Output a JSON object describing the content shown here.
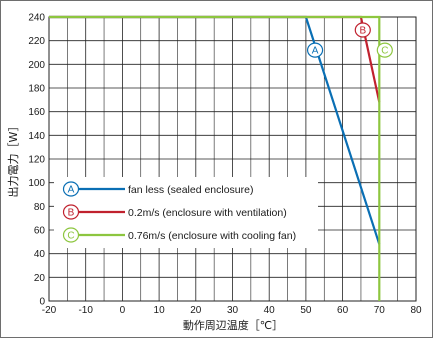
{
  "chart_data": {
    "type": "line",
    "xlabel": "動作周辺温度［℃］",
    "ylabel": "出力電力［W］",
    "xlim": [
      -20,
      80
    ],
    "ylim": [
      0,
      240
    ],
    "x_ticks": [
      -20,
      -10,
      0,
      10,
      20,
      30,
      40,
      50,
      60,
      70,
      80
    ],
    "y_ticks": [
      0,
      20,
      40,
      60,
      80,
      100,
      120,
      140,
      160,
      180,
      200,
      220,
      240
    ],
    "x_ticks_labels": [
      "-20",
      "-10",
      "0",
      "10",
      "20",
      "30",
      "40",
      "50",
      "60",
      "70",
      "80"
    ],
    "y_ticks_labels": [
      "0",
      "20",
      "40",
      "60",
      "80",
      "100",
      "120",
      "140",
      "160",
      "180",
      "200",
      "220",
      "240"
    ],
    "grid": true,
    "legend_position": "bottom-left",
    "series": [
      {
        "marker": "A",
        "name": "fan less (sealed enclosure)",
        "color": "#0a6fb4",
        "points": [
          [
            -20,
            240
          ],
          [
            50,
            240
          ],
          [
            70,
            48
          ]
        ]
      },
      {
        "marker": "B",
        "name": "0.2m/s (enclosure with ventilation)",
        "color": "#c0212e",
        "points": [
          [
            -20,
            240
          ],
          [
            65,
            240
          ],
          [
            70,
            168
          ]
        ]
      },
      {
        "marker": "C",
        "name": "0.76m/s (enclosure with cooling fan)",
        "color": "#8dc63f",
        "points": [
          [
            -20,
            240
          ],
          [
            70,
            240
          ],
          [
            70,
            0
          ]
        ]
      }
    ],
    "curve_markers": [
      {
        "marker": "A",
        "x": 52.5,
        "y": 212
      },
      {
        "marker": "B",
        "x": 65.5,
        "y": 229
      },
      {
        "marker": "C",
        "x": 71.5,
        "y": 212
      }
    ]
  }
}
